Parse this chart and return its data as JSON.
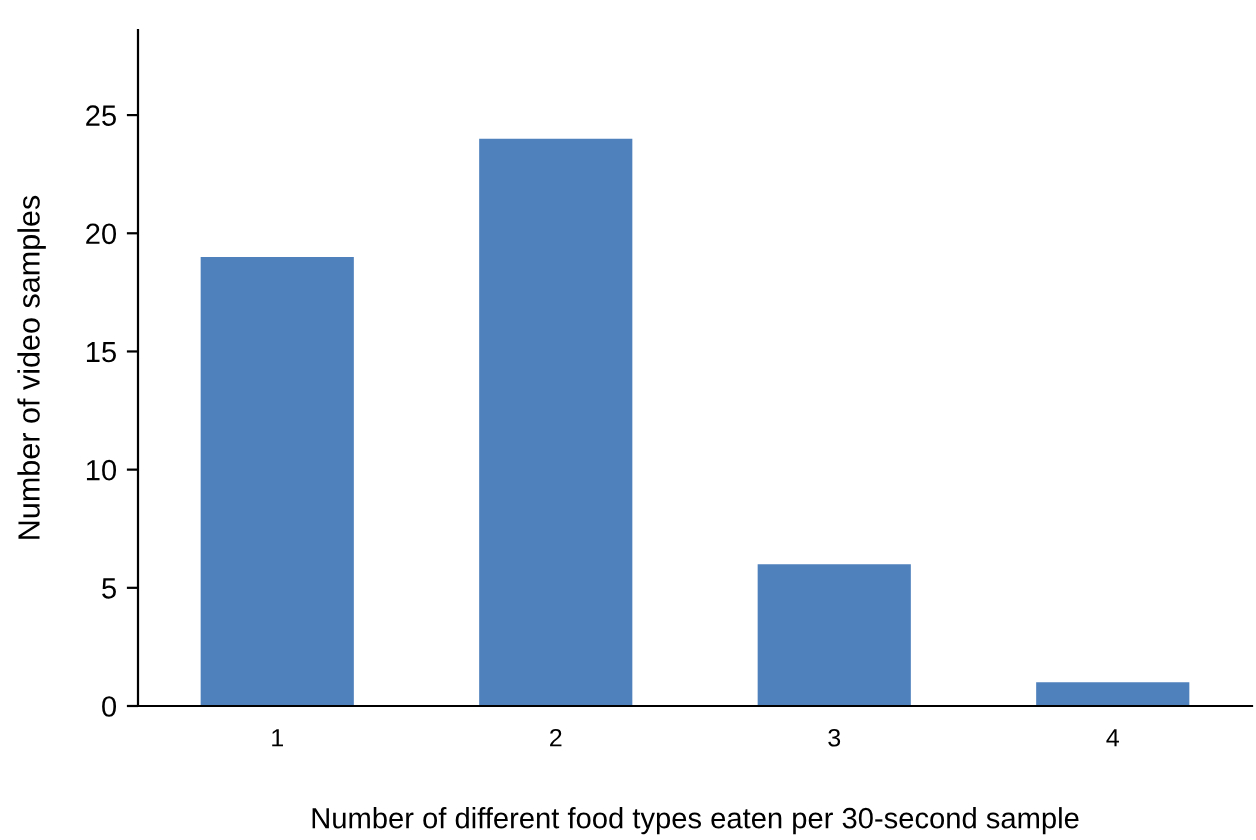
{
  "chart_data": {
    "type": "bar",
    "xlabel": "Number of different food types eaten per 30-second sample",
    "ylabel": "Number of video samples",
    "categories": [
      "1",
      "2",
      "3",
      "4"
    ],
    "values": [
      19,
      24,
      6,
      1
    ],
    "color": "#4f81bd",
    "ylim": [
      0,
      28.6
    ],
    "yticks": [
      0,
      5,
      10,
      15,
      20,
      25
    ],
    "grid": false,
    "legend": false
  }
}
